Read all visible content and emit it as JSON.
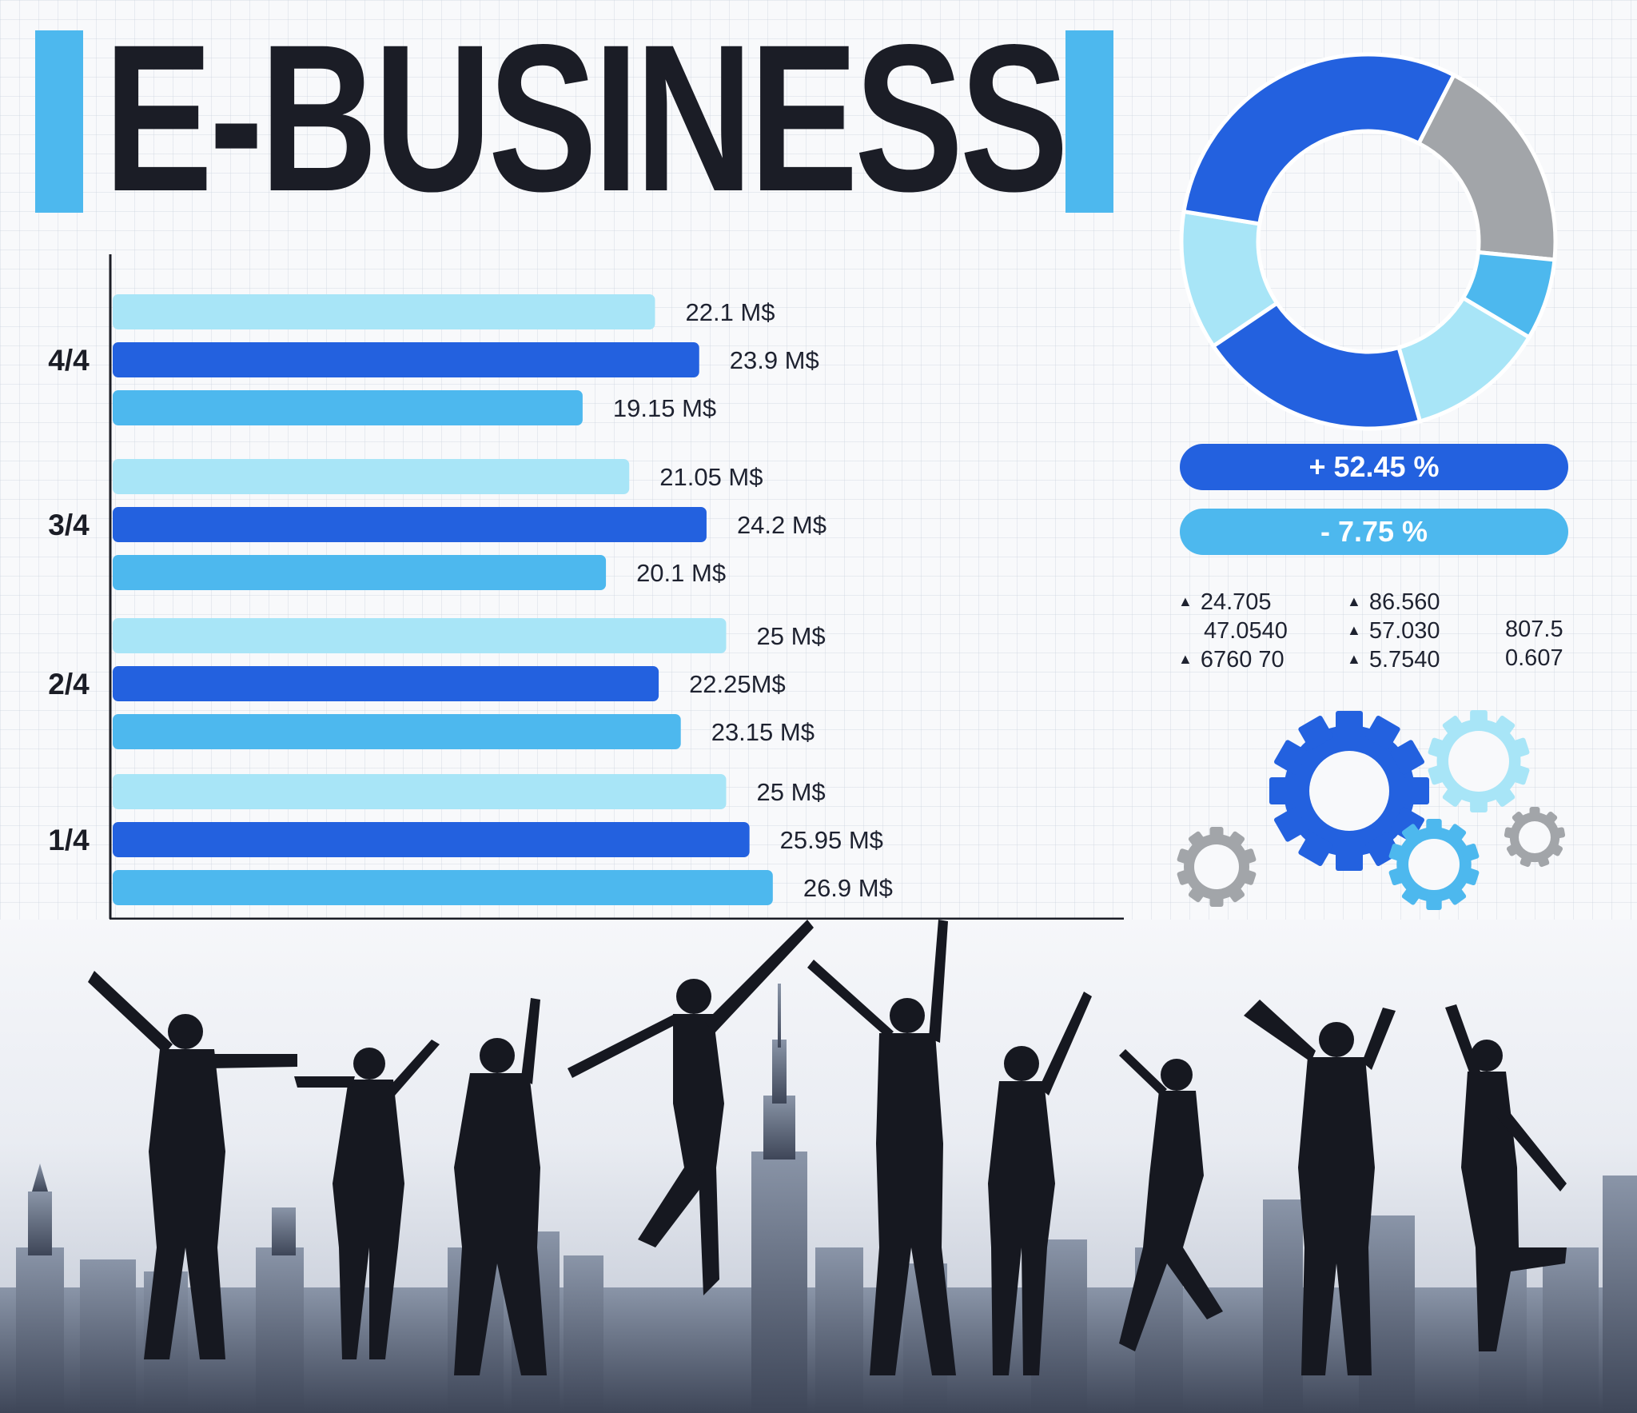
{
  "header": {
    "title": "E-BUSINESS"
  },
  "colors": {
    "accent_light": "#a8e5f7",
    "accent_dark": "#2361df",
    "accent_mid": "#4db8ee",
    "gray": "#a2a5a9",
    "title": "#1b1d26"
  },
  "chart_data": {
    "type": "bar",
    "orientation": "horizontal",
    "categories": [
      "4/4",
      "3/4",
      "2/4",
      "1/4"
    ],
    "series": [
      {
        "values": [
          22.1,
          21.05,
          25,
          25
        ],
        "labels": [
          "22.1 M$",
          "21.05 M$",
          "25 M$",
          "25 M$"
        ],
        "color": "#a8e5f7"
      },
      {
        "values": [
          23.9,
          24.2,
          22.25,
          25.95
        ],
        "labels": [
          "23.9 M$",
          "24.2 M$",
          "22.25M$",
          "25.95 M$"
        ],
        "color": "#2361df"
      },
      {
        "values": [
          19.15,
          20.1,
          23.15,
          26.9
        ],
        "labels": [
          "19.15 M$",
          "20.1 M$",
          "23.15 M$",
          "26.9 M$"
        ],
        "color": "#4db8ee"
      }
    ],
    "xlim": [
      0,
      31.8
    ],
    "grid": true
  },
  "donut": {
    "segments": [
      {
        "value": 12,
        "color": "#a8e5f7"
      },
      {
        "value": 30,
        "color": "#2361df"
      },
      {
        "value": 19,
        "color": "#a2a5a9"
      },
      {
        "value": 7,
        "color": "#4db8ee"
      },
      {
        "value": 12,
        "color": "#a8e5f7"
      },
      {
        "value": 20,
        "color": "#2361df"
      }
    ]
  },
  "indicators": {
    "up": "+ 52.45 %",
    "down": "- 7.75 %"
  },
  "stats": {
    "col1": [
      "24.705",
      "47.0540",
      "6760 70"
    ],
    "col2": [
      "86.560",
      "57.030",
      "5.7540"
    ],
    "col3": [
      "807.5",
      "0.607"
    ]
  }
}
